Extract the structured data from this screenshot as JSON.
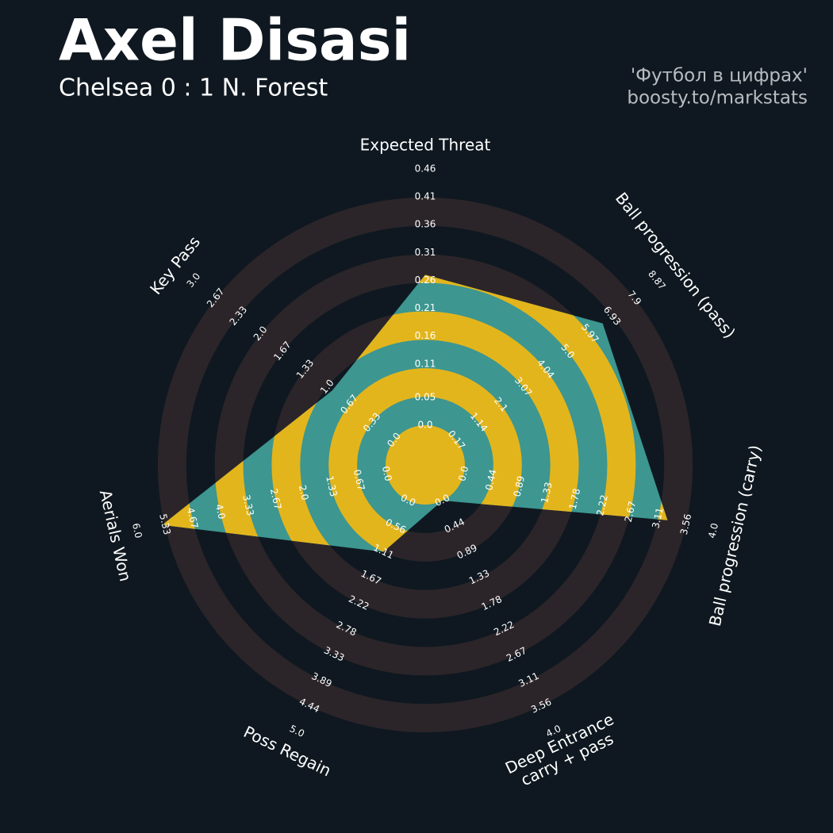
{
  "chart_data": {
    "type": "radar",
    "title": "Axel Disasi",
    "subtitle": "Chelsea 0 : 1 N. Forest",
    "credits": [
      "'Футбол в цифрах'",
      "boosty.to/markstats"
    ],
    "fill_color": "#3d9690",
    "highlight_color": "#e3b51c",
    "ring_color": "#2b2529",
    "params": [
      {
        "name": "Expected Threat",
        "lim": [
          0,
          0.46
        ],
        "value": 0.27,
        "ticks": [
          {
            "value": 0,
            "label": "0.0"
          },
          0.05,
          0.11,
          0.16,
          0.21,
          0.26,
          0.31,
          0.36,
          0.41,
          0.46
        ]
      },
      {
        "name": "Ball progression (pass)",
        "lim": [
          0.17,
          8.87
        ],
        "value": 6.53,
        "ticks": [
          0.17,
          1.14,
          2.1,
          3.07,
          4.04,
          {
            "value": 5,
            "label": "5.0"
          },
          5.97,
          6.93,
          7.9,
          8.87
        ]
      },
      {
        "name": "Ball progression (carry)",
        "lim": [
          0,
          4
        ],
        "value": 3.26,
        "ticks": [
          {
            "value": 0,
            "label": "0.0"
          },
          0.44,
          0.89,
          1.33,
          1.78,
          2.22,
          2.67,
          3.11,
          3.56,
          {
            "value": 4,
            "label": "4.0"
          }
        ]
      },
      {
        "name": "Deep Entrance\ncarry + pass",
        "lim": [
          0,
          4
        ],
        "value": 0,
        "ticks": [
          {
            "value": 0,
            "label": "0.0"
          },
          0.44,
          0.89,
          1.33,
          1.78,
          2.22,
          2.67,
          3.11,
          3.56,
          {
            "value": 4,
            "label": "4.0"
          }
        ]
      },
      {
        "name": "Poss Regain",
        "lim": [
          0,
          5
        ],
        "value": 1.11,
        "ticks": [
          {
            "value": 0,
            "label": "0.0"
          },
          0.56,
          1.11,
          1.67,
          2.22,
          2.78,
          3.33,
          3.89,
          4.44,
          {
            "value": 5,
            "label": "5.0"
          }
        ]
      },
      {
        "name": "Aerials Won",
        "lim": [
          0,
          6
        ],
        "value": 5.39,
        "ticks": [
          {
            "value": 0,
            "label": "0.0"
          },
          0.67,
          1.33,
          {
            "value": 2,
            "label": "2.0"
          },
          2.67,
          3.33,
          {
            "value": 4,
            "label": "4.0"
          },
          4.67,
          5.33,
          {
            "value": 6,
            "label": "6.0"
          }
        ]
      },
      {
        "name": "Key Pass",
        "lim": [
          0,
          3
        ],
        "value": 0.93,
        "ticks": [
          {
            "value": 0,
            "label": "0.0"
          },
          0.33,
          0.67,
          {
            "value": 1,
            "label": "1.0"
          },
          1.33,
          1.67,
          {
            "value": 2,
            "label": "2.0"
          },
          2.33,
          2.67,
          {
            "value": 3,
            "label": "3.0"
          }
        ]
      }
    ]
  }
}
